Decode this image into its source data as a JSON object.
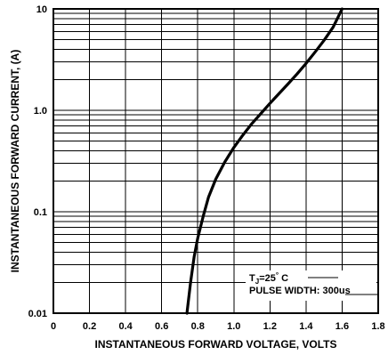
{
  "chart_data": {
    "type": "line",
    "title": "",
    "xlabel": "INSTANTANEOUS FORWARD VOLTAGE, VOLTS",
    "ylabel": "INSTANTANEOUS FORWARD CURRENT, (A)",
    "xlim": [
      0,
      1.8
    ],
    "ylim": [
      0.01,
      10
    ],
    "yscale": "log",
    "grid": true,
    "x_ticks": [
      "0",
      "0.2",
      "0.4",
      "0.6",
      "0.8",
      "1.0",
      "1.2",
      "1.4",
      "1.6",
      "1.8"
    ],
    "x_tick_values": [
      0,
      0.2,
      0.4,
      0.6,
      0.8,
      1.0,
      1.2,
      1.4,
      1.6,
      1.8
    ],
    "y_ticks": [
      "0.01",
      "0.1",
      "1.0",
      "10"
    ],
    "y_tick_values": [
      0.01,
      0.1,
      1.0,
      10
    ],
    "series": [
      {
        "x": [
          0.74,
          0.76,
          0.78,
          0.8,
          0.83,
          0.86,
          0.9,
          0.95,
          1.0,
          1.05,
          1.1,
          1.15,
          1.2,
          1.25,
          1.3,
          1.35,
          1.4,
          1.45,
          1.5,
          1.55,
          1.6
        ],
        "y": [
          0.01,
          0.02,
          0.036,
          0.055,
          0.09,
          0.14,
          0.21,
          0.31,
          0.43,
          0.57,
          0.74,
          0.93,
          1.17,
          1.46,
          1.82,
          2.28,
          2.9,
          3.75,
          4.9,
          6.6,
          10
        ]
      }
    ],
    "annotations": {
      "line1_main": "T",
      "line1_sub": "J",
      "line1_rest": "=25",
      "line1_deg": "°",
      "line1_unit": " C",
      "line2": "PULSE WIDTH: 300us"
    },
    "colors": {
      "line": "#000000",
      "grid": "#000000",
      "background": "#ffffff"
    }
  }
}
